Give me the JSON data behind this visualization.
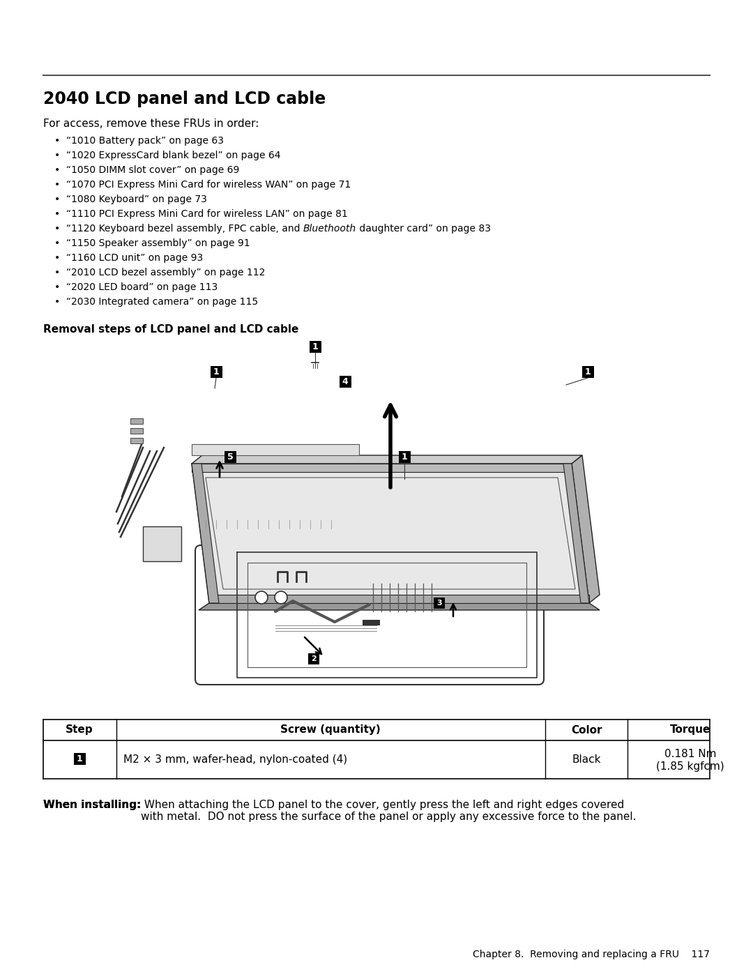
{
  "title": "2040 LCD panel and LCD cable",
  "section_header": "Removal steps of LCD panel and LCD cable",
  "intro": "For access, remove these FRUs in order:",
  "bullets": [
    "“1010 Battery pack” on page 63",
    "“1020 ExpressCard blank bezel” on page 64",
    "“1050 DIMM slot cover” on page 69",
    "“1070 PCI Express Mini Card for wireless WAN” on page 71",
    "“1080 Keyboard” on page 73",
    "“1110 PCI Express Mini Card for wireless LAN” on page 81",
    "“1120 Keyboard bezel assembly, FPC cable, and $Bluethooth$ daughter card” on page 83",
    "“1150 Speaker assembly” on page 91",
    "“1160 LCD unit” on page 93",
    "“2010 LCD bezel assembly” on page 112",
    "“2020 LED board” on page 113",
    "“2030 Integrated camera” on page 115"
  ],
  "table_headers": [
    "Step",
    "Screw (quantity)",
    "Color",
    "Torque"
  ],
  "table_row_screw": "M2 × 3 mm, wafer-head, nylon-coated (4)",
  "table_row_color": "Black",
  "table_row_torque1": "0.181 Nm",
  "table_row_torque2": "(1.85 kgfcm)",
  "when_installing_bold": "When installing:",
  "when_installing_rest": " When attaching the LCD panel to the cover, gently press the left and right edges covered\nwith metal.  DO not press the surface of the panel or apply any excessive force to the panel.",
  "footer": "Chapter 8.  Removing and replacing a FRU    117",
  "bg_color": "#ffffff",
  "text_color": "#000000"
}
